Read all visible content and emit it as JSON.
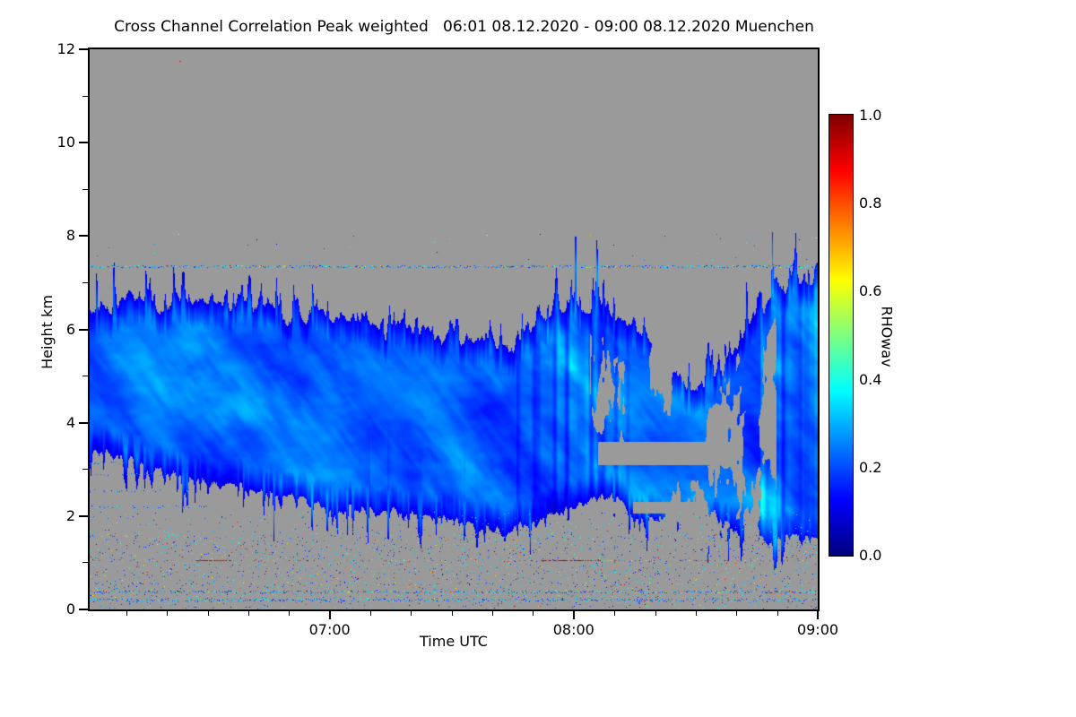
{
  "page": {
    "background": "#ffffff"
  },
  "chart": {
    "title": "Cross Channel Correlation Peak weighted   06:01 08.12.2020 - 09:00 08.12.2020 Muenchen",
    "xlabel": "Time UTC",
    "ylabel": "Height km",
    "colorbar_label": "RHOwav"
  },
  "chart_data": {
    "type": "heatmap",
    "title": "Cross Channel Correlation Peak weighted",
    "subtitle": "06:01 08.12.2020 - 09:00 08.12.2020 Muenchen",
    "station": "Muenchen",
    "time_start": "06:01 08.12.2020",
    "time_end": "09:00 08.12.2020",
    "xlabel": "Time UTC",
    "ylabel": "Height km",
    "quantity": "RHOwav (cross channel correlation, peak weighted)",
    "x_range_minutes_after_0600": [
      1,
      180
    ],
    "x_ticks": [
      {
        "minutes_after_0600": 60,
        "label": "07:00"
      },
      {
        "minutes_after_0600": 120,
        "label": "08:00"
      },
      {
        "minutes_after_0600": 180,
        "label": "09:00"
      }
    ],
    "x_minor_tick_minutes": 10,
    "ylim_km": [
      0,
      12
    ],
    "y_ticks_km": [
      0,
      2,
      4,
      6,
      8,
      10,
      12
    ],
    "y_minor_ticks_km": [
      1,
      3,
      5,
      7,
      9,
      11
    ],
    "colorbar": {
      "label": "RHOwav",
      "range": [
        0.0,
        1.0
      ],
      "ticks": [
        "0.0",
        "0.2",
        "0.4",
        "0.6",
        "0.8",
        "1.0"
      ],
      "colormap": "jet"
    },
    "background_color": "#9a9a9a",
    "frame_color": "#000000",
    "cloud": {
      "description": "Cloud layer of low correlation (blue, RHOwav ~0.05-0.45) between ~1.6 km and ~7.3 km, top descending then spiky after 07:50, patchy 08:10-08:45, dense column near 09:00",
      "value_range": [
        0.05,
        0.45
      ],
      "top_profile_km": [
        [
          1,
          6.35
        ],
        [
          10,
          6.6
        ],
        [
          20,
          6.5
        ],
        [
          30,
          6.4
        ],
        [
          40,
          6.55
        ],
        [
          50,
          6.3
        ],
        [
          60,
          6.2
        ],
        [
          70,
          6.05
        ],
        [
          80,
          6.0
        ],
        [
          90,
          5.85
        ],
        [
          100,
          5.65
        ],
        [
          105,
          5.5
        ],
        [
          110,
          5.9
        ],
        [
          115,
          6.4
        ],
        [
          120,
          6.5
        ],
        [
          125,
          6.35
        ],
        [
          130,
          6.1
        ],
        [
          135,
          5.9
        ],
        [
          140,
          5.6
        ],
        [
          145,
          4.9
        ],
        [
          150,
          4.6
        ],
        [
          155,
          5.1
        ],
        [
          160,
          5.5
        ],
        [
          165,
          6.3
        ],
        [
          170,
          6.9
        ],
        [
          175,
          7.0
        ],
        [
          180,
          7.05
        ]
      ],
      "base_profile_km": [
        [
          1,
          3.4
        ],
        [
          10,
          3.3
        ],
        [
          20,
          3.0
        ],
        [
          30,
          2.7
        ],
        [
          40,
          2.6
        ],
        [
          50,
          2.4
        ],
        [
          60,
          2.2
        ],
        [
          70,
          2.15
        ],
        [
          80,
          2.05
        ],
        [
          90,
          1.95
        ],
        [
          100,
          1.75
        ],
        [
          105,
          1.65
        ],
        [
          110,
          1.9
        ],
        [
          115,
          2.1
        ],
        [
          120,
          2.2
        ],
        [
          125,
          2.4
        ],
        [
          130,
          2.5
        ],
        [
          135,
          2.0
        ],
        [
          140,
          1.9
        ],
        [
          145,
          1.8
        ],
        [
          150,
          1.7
        ],
        [
          155,
          1.8
        ],
        [
          160,
          1.7
        ],
        [
          165,
          1.6
        ],
        [
          170,
          1.55
        ],
        [
          175,
          1.5
        ],
        [
          180,
          1.55
        ]
      ],
      "spike_amp_km": [
        [
          1,
          0.5
        ],
        [
          40,
          0.5
        ],
        [
          60,
          0.35
        ],
        [
          90,
          0.3
        ],
        [
          105,
          0.45
        ],
        [
          110,
          1.1
        ],
        [
          120,
          1.1
        ],
        [
          128,
          0.9
        ],
        [
          140,
          0.6
        ],
        [
          150,
          0.5
        ],
        [
          160,
          0.8
        ],
        [
          165,
          0.95
        ],
        [
          175,
          0.7
        ],
        [
          180,
          0.5
        ]
      ]
    },
    "speckle_lines": [
      {
        "km": 7.35,
        "t0": 1,
        "t1": 180,
        "density": 0.7,
        "mode": "coolmix",
        "jitter": 1
      },
      {
        "km": 1.05,
        "t0": 1,
        "t1": 180,
        "density": 0.18,
        "mode": "warm",
        "jitter": 0
      },
      {
        "km": 1.05,
        "t0": 27,
        "t1": 36,
        "density": 0.9,
        "mode": "red",
        "jitter": 0
      },
      {
        "km": 1.05,
        "t0": 112,
        "t1": 127,
        "density": 0.85,
        "mode": "red",
        "jitter": 0
      },
      {
        "km": 0.38,
        "t0": 1,
        "t1": 180,
        "density": 0.6,
        "mode": "coolmix",
        "jitter": 1
      },
      {
        "km": 0.22,
        "t0": 1,
        "t1": 180,
        "density": 0.5,
        "mode": "cool",
        "jitter": 1
      },
      {
        "km": 0.55,
        "t0": 1,
        "t1": 180,
        "density": 0.1,
        "mode": "mix",
        "jitter": 1
      },
      {
        "km": 0.8,
        "t0": 1,
        "t1": 180,
        "density": 0.08,
        "mode": "mix",
        "jitter": 1
      },
      {
        "km": 1.3,
        "t0": 1,
        "t1": 180,
        "density": 0.08,
        "mode": "cool",
        "jitter": 1
      },
      {
        "km": 1.55,
        "t0": 1,
        "t1": 180,
        "density": 0.06,
        "mode": "cool",
        "jitter": 1
      },
      {
        "km": 2.2,
        "t0": 1,
        "t1": 32,
        "density": 0.3,
        "mode": "cool",
        "jitter": 1
      },
      {
        "km": 2.55,
        "t0": 1,
        "t1": 26,
        "density": 0.25,
        "mode": "cool",
        "jitter": 1
      },
      {
        "km": 2.9,
        "t0": 1,
        "t1": 20,
        "density": 0.2,
        "mode": "cool",
        "jitter": 1
      },
      {
        "km": 3.15,
        "t0": 1,
        "t1": 14,
        "density": 0.2,
        "mode": "cool",
        "jitter": 1
      }
    ],
    "scatter_noise": [
      {
        "seed": 12345,
        "count": 2200,
        "km_min": 0.02,
        "km_max": 1.65,
        "warm_fraction": 0.16
      },
      {
        "seed": 54321,
        "count": 260,
        "km_min": 1.65,
        "km_max": 2.1,
        "warm_fraction": 0.04
      },
      {
        "seed": 99731,
        "count": 40,
        "km_min": 7.4,
        "km_max": 8.05,
        "warm_fraction": 0.1
      }
    ],
    "artifacts": [
      {
        "minutes_after_0600": 23,
        "km": 11.75,
        "value": 0.9
      }
    ]
  }
}
